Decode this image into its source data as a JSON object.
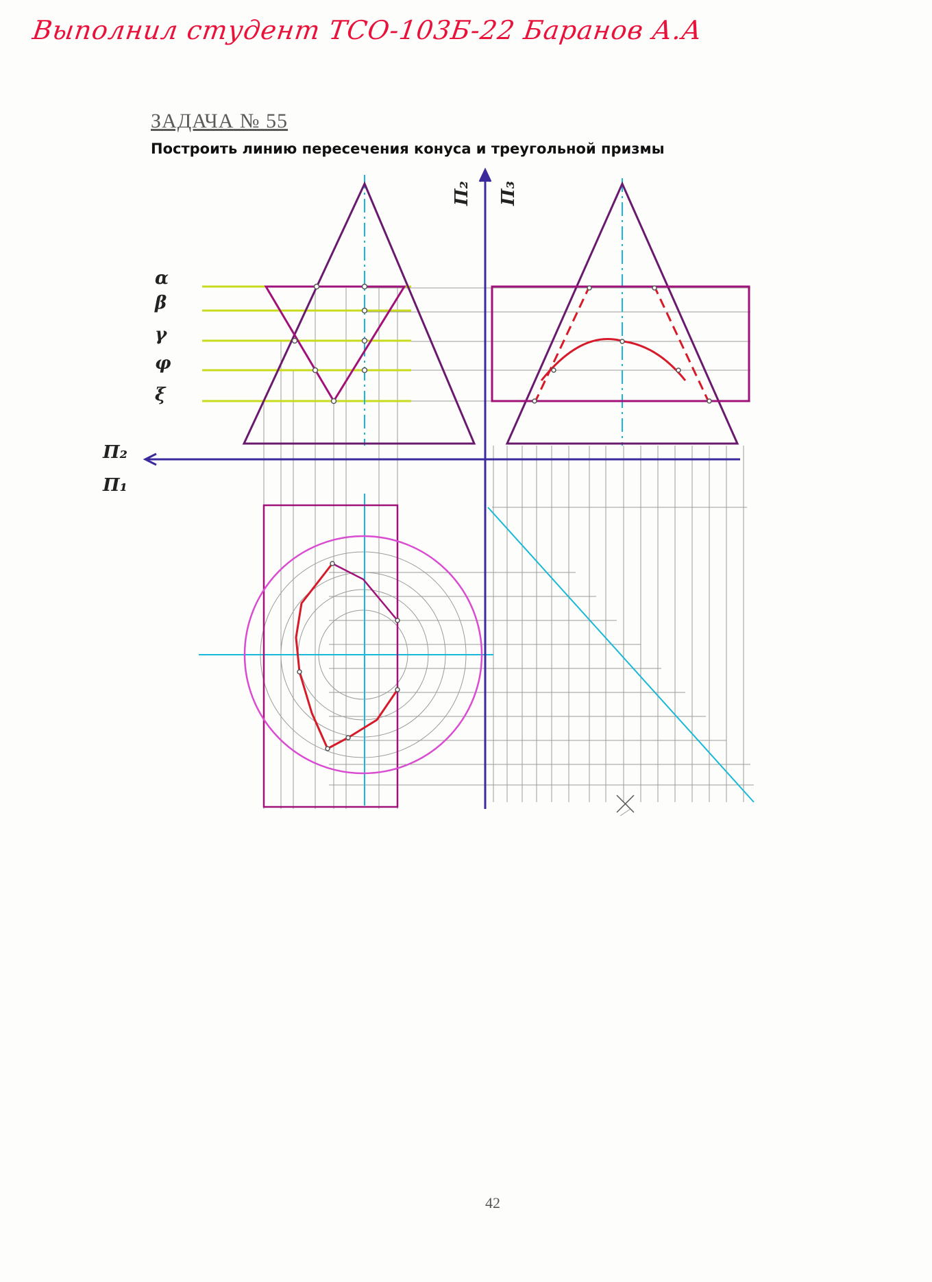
{
  "header": {
    "signature": "Выполнил студент ТСО-103Б-22 Баранов А.А"
  },
  "task": {
    "title": "ЗАДАЧА № 55",
    "description": "Построить линию пересечения конуса и треугольной призмы"
  },
  "axes": {
    "pi2_vertical": "П₂",
    "pi3_vertical": "П₃",
    "pi2_horizontal": "П₂",
    "pi1_horizontal": "П₁"
  },
  "planes": [
    "α",
    "β",
    "γ",
    "φ",
    "ξ"
  ],
  "page_number": "42",
  "colors": {
    "signature": "#e8123b",
    "prism": "#a0127a",
    "cone": "#6a1a6e",
    "intersection": "#d61a2a",
    "cutting_planes": "#c9db1f",
    "axis": "#3a2a9c",
    "construction": "#9a9a9a",
    "center_lines": "#18b8d8"
  }
}
